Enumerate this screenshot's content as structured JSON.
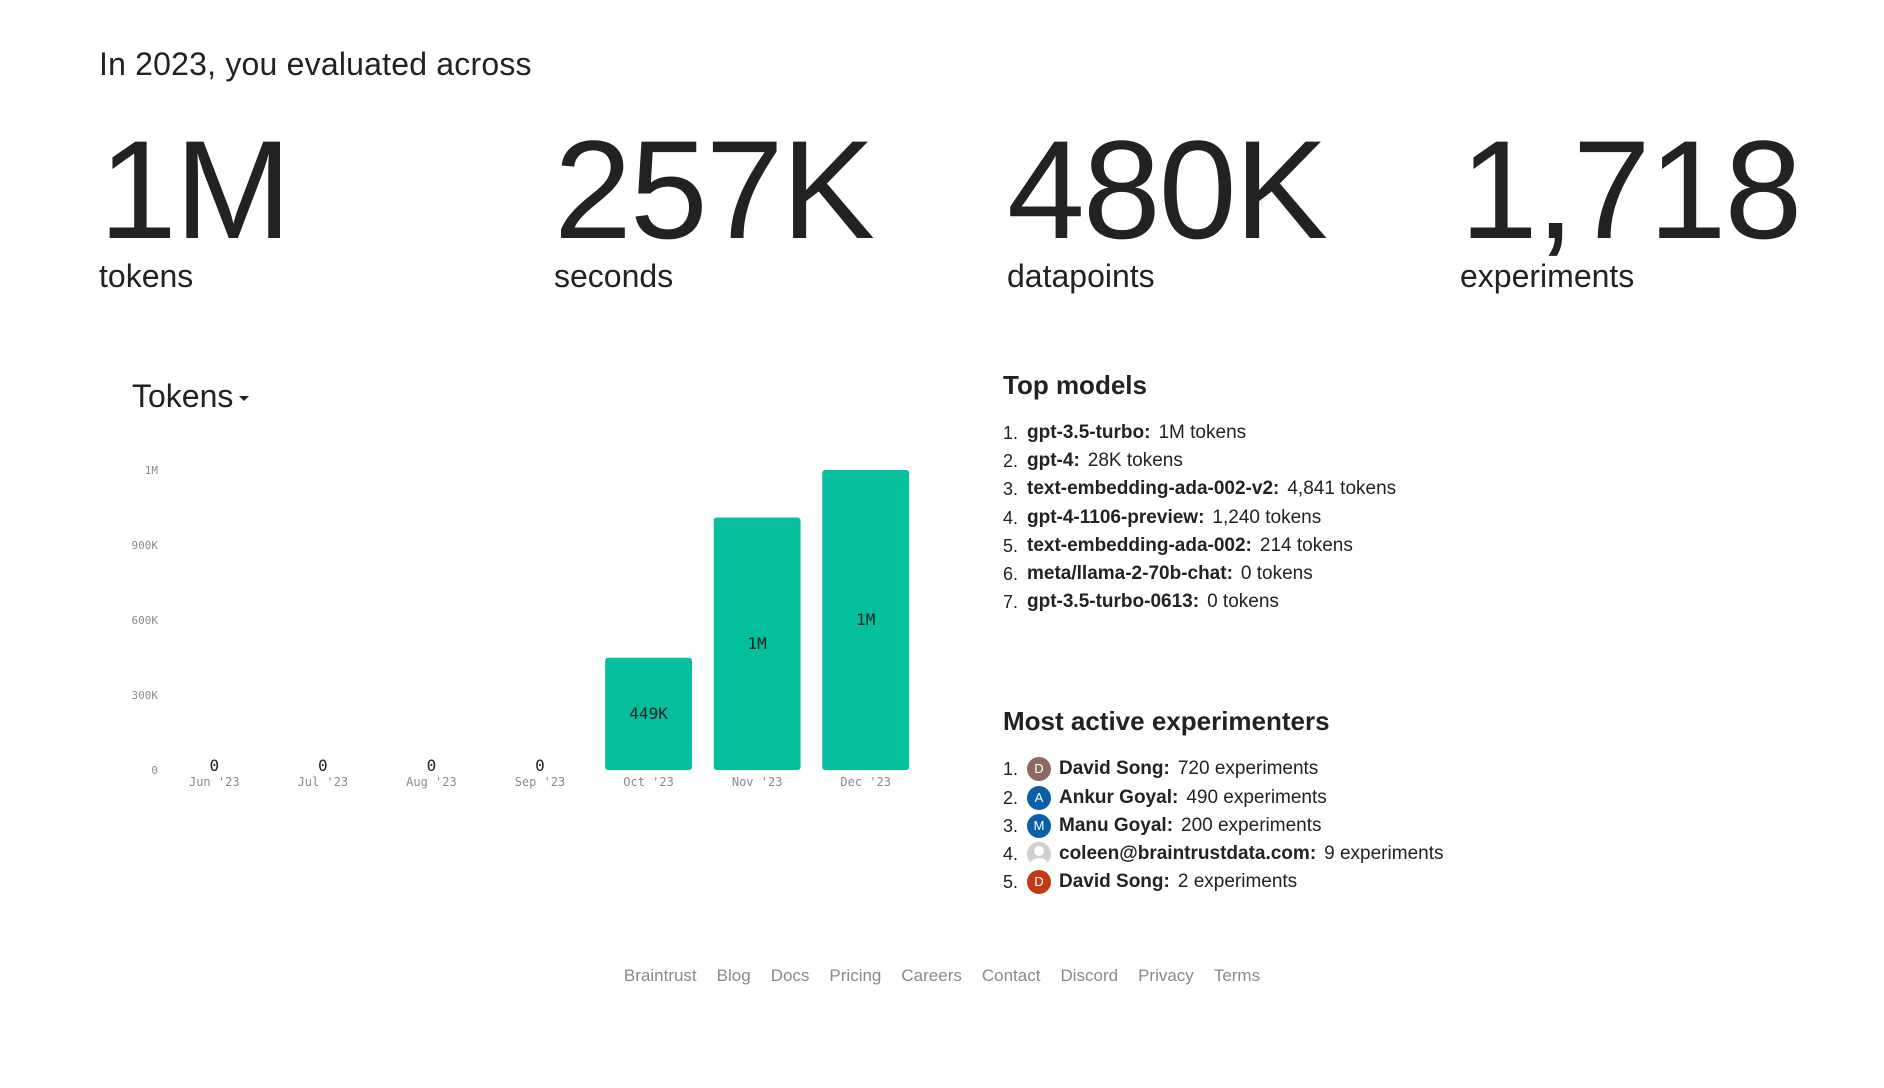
{
  "intro": "In 2023, you evaluated across",
  "stats": [
    {
      "value": "1M",
      "label": "tokens"
    },
    {
      "value": "257K",
      "label": "seconds"
    },
    {
      "value": "480K",
      "label": "datapoints"
    },
    {
      "value": "1,718",
      "label": "experiments"
    }
  ],
  "metric_selector": {
    "label": "Tokens"
  },
  "chart_data": {
    "type": "bar",
    "title": "Tokens",
    "categories": [
      "Jun '23",
      "Jul '23",
      "Aug '23",
      "Sep '23",
      "Oct '23",
      "Nov '23",
      "Dec '23"
    ],
    "values": [
      0,
      0,
      0,
      0,
      449000,
      1010000,
      1200000
    ],
    "data_labels": [
      "0",
      "0",
      "0",
      "0",
      "449K",
      "1M",
      "1M"
    ],
    "yticks": [
      0,
      300000,
      600000,
      900000,
      1200000
    ],
    "ytick_labels": [
      "0",
      "300K",
      "600K",
      "900K",
      "1M"
    ],
    "ylim": [
      0,
      1200000
    ],
    "color": "#06BF9C",
    "xlabel": "",
    "ylabel": ""
  },
  "top_models": {
    "title": "Top models",
    "items": [
      {
        "rank": "1.",
        "name": "gpt-3.5-turbo",
        "value": "1M tokens"
      },
      {
        "rank": "2.",
        "name": "gpt-4",
        "value": "28K tokens"
      },
      {
        "rank": "3.",
        "name": "text-embedding-ada-002-v2",
        "value": "4,841 tokens"
      },
      {
        "rank": "4.",
        "name": "gpt-4-1106-preview",
        "value": "1,240 tokens"
      },
      {
        "rank": "5.",
        "name": "text-embedding-ada-002",
        "value": "214 tokens"
      },
      {
        "rank": "6.",
        "name": "meta/llama-2-70b-chat",
        "value": "0 tokens"
      },
      {
        "rank": "7.",
        "name": "gpt-3.5-turbo-0613",
        "value": "0 tokens"
      }
    ]
  },
  "experimenters": {
    "title": "Most active experimenters",
    "items": [
      {
        "rank": "1.",
        "initial": "D",
        "avatar_color": "#8C6A5E",
        "name": "David Song",
        "value": "720 experiments"
      },
      {
        "rank": "2.",
        "initial": "A",
        "avatar_color": "#0B5FA8",
        "name": "Ankur Goyal",
        "value": "490 experiments"
      },
      {
        "rank": "3.",
        "initial": "M",
        "avatar_color": "#0B5FA8",
        "name": "Manu Goyal",
        "value": "200 experiments"
      },
      {
        "rank": "4.",
        "initial": "",
        "avatar_color": "#CFCFCF",
        "name": "coleen@braintrustdata.com",
        "value": "9 experiments"
      },
      {
        "rank": "5.",
        "initial": "D",
        "avatar_color": "#C33A12",
        "name": "David Song",
        "value": "2 experiments"
      }
    ]
  },
  "footer": {
    "links": [
      "Braintrust",
      "Blog",
      "Docs",
      "Pricing",
      "Careers",
      "Contact",
      "Discord",
      "Privacy",
      "Terms"
    ]
  }
}
